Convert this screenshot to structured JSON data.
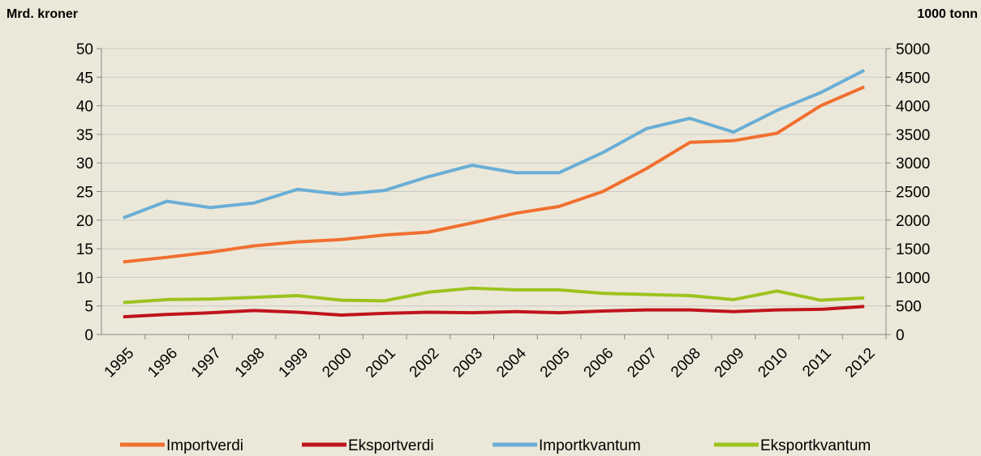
{
  "chart_data": {
    "type": "line",
    "y_label": "Mrd. kroner",
    "y2_label": "1000 tonn",
    "categories": [
      "1995",
      "1996",
      "1997",
      "1998",
      "1999",
      "2000",
      "2001",
      "2002",
      "2003",
      "2004",
      "2005",
      "2006",
      "2007",
      "2008",
      "2009",
      "2010",
      "2011",
      "2012"
    ],
    "series": [
      {
        "name": "Importverdi",
        "color": "#f07030",
        "values": [
          12.7,
          13.5,
          14.4,
          15.5,
          16.2,
          16.6,
          17.4,
          17.9,
          19.5,
          21.2,
          22.4,
          25.0,
          29.0,
          33.6,
          33.9,
          35.2,
          40.0,
          43.3
        ]
      },
      {
        "name": "Eksportverdi",
        "color": "#c0141c",
        "values": [
          3.1,
          3.5,
          3.8,
          4.2,
          3.9,
          3.4,
          3.7,
          3.9,
          3.8,
          4.0,
          3.8,
          4.1,
          4.3,
          4.3,
          4.0,
          4.3,
          4.4,
          4.9
        ]
      },
      {
        "name": "Importkvantum",
        "color": "#6aaed6",
        "axis": "y2",
        "values": [
          2040,
          2330,
          2220,
          2300,
          2540,
          2450,
          2520,
          2760,
          2960,
          2830,
          2830,
          3180,
          3600,
          3780,
          3540,
          3920,
          4230,
          4620
        ]
      },
      {
        "name": "Eksportkvantum",
        "color": "#9cc31e",
        "axis": "y2",
        "values": [
          560,
          610,
          620,
          650,
          680,
          600,
          590,
          740,
          810,
          780,
          780,
          720,
          700,
          680,
          610,
          760,
          600,
          640
        ]
      }
    ],
    "ylim": [
      0,
      50
    ],
    "yticks": [
      0,
      5,
      10,
      15,
      20,
      25,
      30,
      35,
      40,
      45,
      50
    ],
    "y2lim": [
      0,
      5000
    ],
    "y2ticks": [
      0,
      500,
      1000,
      1500,
      2000,
      2500,
      3000,
      3500,
      4000,
      4500,
      5000
    ],
    "grid": true
  }
}
